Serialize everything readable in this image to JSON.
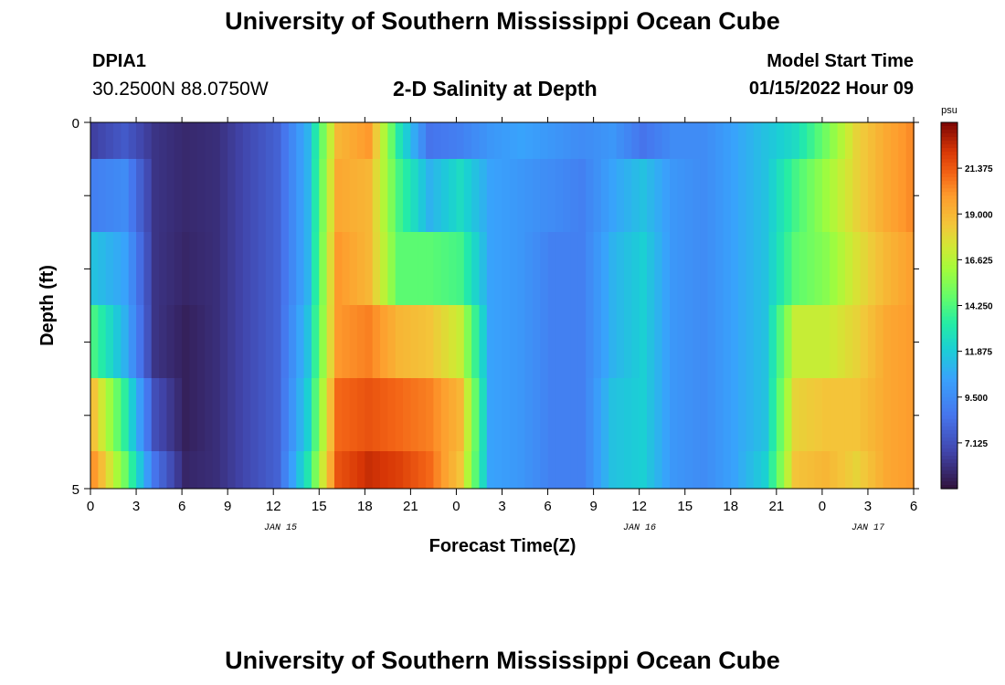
{
  "header": {
    "title": "University of Southern Mississippi Ocean Cube",
    "station_id": "DPIA1",
    "station_coords": "30.2500N  88.0750W",
    "plot_title": "2-D Salinity at Depth",
    "model_start_label": "Model Start Time",
    "model_start_value": "01/15/2022 Hour 09"
  },
  "footer": {
    "title": "University of Southern Mississippi Ocean Cube"
  },
  "chart_data": {
    "type": "heatmap",
    "title": "2-D Salinity at Depth",
    "xlabel": "Forecast Time(Z)",
    "ylabel": "Depth (ft)",
    "x_tick_labels": [
      "0",
      "3",
      "6",
      "9",
      "12",
      "15",
      "18",
      "21",
      "0",
      "3",
      "6",
      "9",
      "12",
      "15",
      "18",
      "21",
      "0",
      "3",
      "6"
    ],
    "day_labels": [
      "JAN 15",
      "JAN 16",
      "JAN 17"
    ],
    "y_tick_labels": [
      "0",
      "5"
    ],
    "ylim": [
      0,
      5
    ],
    "colorbar": {
      "unit": "psu",
      "range": [
        4.75,
        23.75
      ],
      "labels": [
        "21.375",
        "19.000",
        "16.625",
        "14.250",
        "11.875",
        "9.500",
        "7.125"
      ],
      "colormap": "turbo"
    },
    "depth_bands_ft": [
      "0-0.5",
      "0.5-1.5",
      "1.5-2.5",
      "2.5-3.5",
      "3.5-4.5",
      "4.5-5"
    ],
    "time_hours": [
      0,
      2,
      4,
      6,
      8,
      10,
      12,
      14,
      16,
      18,
      20,
      22,
      24,
      26,
      28,
      30,
      32,
      34,
      36,
      38,
      40,
      42,
      44,
      46,
      48,
      50,
      52,
      54
    ],
    "salinity": [
      [
        6.5,
        7.5,
        6.0,
        5.6,
        5.8,
        6.8,
        7.8,
        11.0,
        19.0,
        20.0,
        13.0,
        8.5,
        9.0,
        10.0,
        10.5,
        10.0,
        9.5,
        10.0,
        8.5,
        9.5,
        9.5,
        10.5,
        11.5,
        12.5,
        15.0,
        18.0,
        19.5,
        20.5
      ],
      [
        9.0,
        9.5,
        6.0,
        5.6,
        5.8,
        6.8,
        7.8,
        11.0,
        19.5,
        19.0,
        14.0,
        11.0,
        12.5,
        10.5,
        10.0,
        9.5,
        9.0,
        10.5,
        11.5,
        10.0,
        9.5,
        10.5,
        11.5,
        14.0,
        16.0,
        18.0,
        19.5,
        20.5
      ],
      [
        11.5,
        10.5,
        6.0,
        5.5,
        5.8,
        6.8,
        7.8,
        11.0,
        20.0,
        19.0,
        14.5,
        14.5,
        14.0,
        10.5,
        10.0,
        9.0,
        9.0,
        11.0,
        12.0,
        10.0,
        9.5,
        10.5,
        11.5,
        14.5,
        15.5,
        17.5,
        19.0,
        20.0
      ],
      [
        14.0,
        11.0,
        6.0,
        5.3,
        5.8,
        6.8,
        7.8,
        11.5,
        20.0,
        20.5,
        19.0,
        18.5,
        17.0,
        10.5,
        10.0,
        9.0,
        9.0,
        11.0,
        12.0,
        10.0,
        9.5,
        10.5,
        11.5,
        17.0,
        17.0,
        18.0,
        19.5,
        20.0
      ],
      [
        18.5,
        13.5,
        7.0,
        5.3,
        5.8,
        6.8,
        7.8,
        12.0,
        21.0,
        21.5,
        21.0,
        20.5,
        19.0,
        10.5,
        10.0,
        9.0,
        9.0,
        11.5,
        12.0,
        10.0,
        9.5,
        10.5,
        11.5,
        18.0,
        18.5,
        18.5,
        19.5,
        20.0
      ],
      [
        20.0,
        15.0,
        8.5,
        5.5,
        5.8,
        6.8,
        7.8,
        13.0,
        21.5,
        22.5,
        22.0,
        21.0,
        18.5,
        10.5,
        10.0,
        9.0,
        9.0,
        11.5,
        12.0,
        10.0,
        9.5,
        10.5,
        12.0,
        18.5,
        19.0,
        18.0,
        19.5,
        20.0
      ]
    ]
  }
}
